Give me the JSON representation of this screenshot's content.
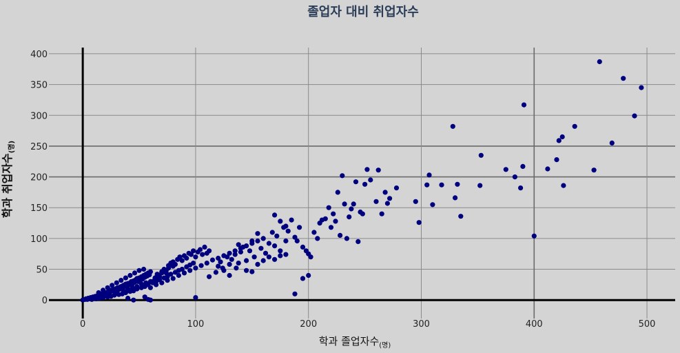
{
  "chart_data": {
    "type": "scatter",
    "title": "졸업자 대비 취업자수",
    "xlabel": "학과 졸업자수",
    "xlabel_unit": "(명)",
    "ylabel": "학과 취업자수",
    "ylabel_unit": "(명)",
    "xlim": [
      -30,
      525
    ],
    "ylim": [
      -30,
      410
    ],
    "x_ticks": [
      0,
      100,
      200,
      300,
      400,
      500
    ],
    "y_ticks": [
      0,
      50,
      100,
      150,
      200,
      250,
      300,
      350,
      400
    ],
    "x_tick_labels": [
      "0",
      "100",
      "200",
      "300",
      "400",
      "500"
    ],
    "y_tick_labels": [
      "0",
      "50",
      "100",
      "150",
      "200",
      "250",
      "300",
      "350",
      "400"
    ],
    "grid": true,
    "color": "#00007f",
    "points": [
      [
        0,
        0
      ],
      [
        2,
        1
      ],
      [
        3,
        2
      ],
      [
        4,
        1
      ],
      [
        5,
        3
      ],
      [
        6,
        2
      ],
      [
        7,
        4
      ],
      [
        8,
        3
      ],
      [
        9,
        5
      ],
      [
        10,
        4
      ],
      [
        11,
        6
      ],
      [
        12,
        5
      ],
      [
        13,
        7
      ],
      [
        14,
        8
      ],
      [
        15,
        6
      ],
      [
        16,
        9
      ],
      [
        17,
        10
      ],
      [
        18,
        8
      ],
      [
        19,
        11
      ],
      [
        20,
        12
      ],
      [
        21,
        9
      ],
      [
        22,
        13
      ],
      [
        23,
        14
      ],
      [
        24,
        12
      ],
      [
        25,
        16
      ],
      [
        26,
        15
      ],
      [
        27,
        17
      ],
      [
        28,
        14
      ],
      [
        29,
        18
      ],
      [
        30,
        19
      ],
      [
        31,
        20
      ],
      [
        32,
        17
      ],
      [
        33,
        21
      ],
      [
        34,
        22
      ],
      [
        35,
        19
      ],
      [
        36,
        24
      ],
      [
        37,
        23
      ],
      [
        38,
        26
      ],
      [
        39,
        21
      ],
      [
        40,
        27
      ],
      [
        41,
        25
      ],
      [
        42,
        28
      ],
      [
        43,
        30
      ],
      [
        44,
        26
      ],
      [
        45,
        31
      ],
      [
        46,
        29
      ],
      [
        47,
        33
      ],
      [
        48,
        35
      ],
      [
        49,
        30
      ],
      [
        50,
        36
      ],
      [
        51,
        32
      ],
      [
        52,
        38
      ],
      [
        53,
        34
      ],
      [
        54,
        40
      ],
      [
        55,
        37
      ],
      [
        56,
        42
      ],
      [
        57,
        39
      ],
      [
        58,
        44
      ],
      [
        59,
        41
      ],
      [
        60,
        46
      ],
      [
        8,
        1
      ],
      [
        12,
        2
      ],
      [
        15,
        3
      ],
      [
        18,
        4
      ],
      [
        22,
        5
      ],
      [
        25,
        6
      ],
      [
        28,
        8
      ],
      [
        32,
        9
      ],
      [
        35,
        10
      ],
      [
        38,
        12
      ],
      [
        42,
        14
      ],
      [
        45,
        15
      ],
      [
        48,
        18
      ],
      [
        52,
        20
      ],
      [
        55,
        22
      ],
      [
        58,
        25
      ],
      [
        62,
        28
      ],
      [
        65,
        30
      ],
      [
        68,
        33
      ],
      [
        72,
        36
      ],
      [
        75,
        38
      ],
      [
        78,
        42
      ],
      [
        82,
        45
      ],
      [
        85,
        48
      ],
      [
        88,
        50
      ],
      [
        92,
        54
      ],
      [
        95,
        57
      ],
      [
        98,
        60
      ],
      [
        14,
        12
      ],
      [
        18,
        16
      ],
      [
        22,
        20
      ],
      [
        26,
        24
      ],
      [
        30,
        28
      ],
      [
        34,
        32
      ],
      [
        38,
        36
      ],
      [
        42,
        40
      ],
      [
        46,
        44
      ],
      [
        50,
        48
      ],
      [
        54,
        50
      ],
      [
        30,
        12
      ],
      [
        36,
        15
      ],
      [
        40,
        18
      ],
      [
        44,
        20
      ],
      [
        48,
        22
      ],
      [
        52,
        26
      ],
      [
        56,
        28
      ],
      [
        60,
        30
      ],
      [
        64,
        34
      ],
      [
        66,
        40
      ],
      [
        70,
        44
      ],
      [
        74,
        48
      ],
      [
        76,
        52
      ],
      [
        80,
        55
      ],
      [
        62,
        30
      ],
      [
        64,
        36
      ],
      [
        66,
        42
      ],
      [
        68,
        38
      ],
      [
        70,
        46
      ],
      [
        72,
        50
      ],
      [
        74,
        44
      ],
      [
        76,
        56
      ],
      [
        78,
        60
      ],
      [
        80,
        62
      ],
      [
        82,
        58
      ],
      [
        84,
        66
      ],
      [
        86,
        70
      ],
      [
        88,
        64
      ],
      [
        90,
        72
      ],
      [
        92,
        68
      ],
      [
        94,
        76
      ],
      [
        96,
        74
      ],
      [
        98,
        80
      ],
      [
        100,
        70
      ],
      [
        102,
        78
      ],
      [
        104,
        82
      ],
      [
        106,
        74
      ],
      [
        108,
        86
      ],
      [
        110,
        76
      ],
      [
        112,
        80
      ],
      [
        60,
        20
      ],
      [
        65,
        25
      ],
      [
        70,
        28
      ],
      [
        75,
        32
      ],
      [
        80,
        35
      ],
      [
        85,
        40
      ],
      [
        90,
        44
      ],
      [
        95,
        48
      ],
      [
        100,
        52
      ],
      [
        105,
        56
      ],
      [
        110,
        60
      ],
      [
        115,
        65
      ],
      [
        120,
        68
      ],
      [
        125,
        72
      ],
      [
        130,
        76
      ],
      [
        135,
        80
      ],
      [
        140,
        84
      ],
      [
        145,
        88
      ],
      [
        150,
        92
      ],
      [
        155,
        96
      ],
      [
        100,
        4
      ],
      [
        55,
        5
      ],
      [
        58,
        1
      ],
      [
        45,
        0
      ],
      [
        60,
        0
      ],
      [
        40,
        3
      ],
      [
        120,
        55
      ],
      [
        122,
        62
      ],
      [
        125,
        48
      ],
      [
        128,
        70
      ],
      [
        130,
        58
      ],
      [
        132,
        66
      ],
      [
        135,
        74
      ],
      [
        136,
        52
      ],
      [
        138,
        90
      ],
      [
        140,
        78
      ],
      [
        142,
        86
      ],
      [
        145,
        64
      ],
      [
        148,
        80
      ],
      [
        150,
        96
      ],
      [
        152,
        70
      ],
      [
        155,
        108
      ],
      [
        158,
        84
      ],
      [
        160,
        100
      ],
      [
        162,
        76
      ],
      [
        165,
        92
      ],
      [
        168,
        110
      ],
      [
        170,
        88
      ],
      [
        172,
        104
      ],
      [
        175,
        80
      ],
      [
        178,
        118
      ],
      [
        180,
        96
      ],
      [
        112,
        38
      ],
      [
        118,
        45
      ],
      [
        124,
        52
      ],
      [
        130,
        40
      ],
      [
        138,
        60
      ],
      [
        145,
        48
      ],
      [
        150,
        46
      ],
      [
        155,
        58
      ],
      [
        160,
        64
      ],
      [
        165,
        70
      ],
      [
        170,
        66
      ],
      [
        175,
        72
      ],
      [
        180,
        74
      ],
      [
        170,
        138
      ],
      [
        175,
        128
      ],
      [
        180,
        120
      ],
      [
        182,
        112
      ],
      [
        185,
        130
      ],
      [
        188,
        102
      ],
      [
        190,
        96
      ],
      [
        192,
        118
      ],
      [
        195,
        86
      ],
      [
        198,
        80
      ],
      [
        200,
        75
      ],
      [
        202,
        70
      ],
      [
        205,
        110
      ],
      [
        208,
        100
      ],
      [
        188,
        10
      ],
      [
        195,
        35
      ],
      [
        200,
        40
      ],
      [
        210,
        125
      ],
      [
        212,
        130
      ],
      [
        215,
        132
      ],
      [
        218,
        150
      ],
      [
        220,
        118
      ],
      [
        222,
        140
      ],
      [
        224,
        128
      ],
      [
        226,
        175
      ],
      [
        228,
        105
      ],
      [
        230,
        202
      ],
      [
        232,
        156
      ],
      [
        234,
        100
      ],
      [
        236,
        135
      ],
      [
        238,
        148
      ],
      [
        240,
        156
      ],
      [
        242,
        192
      ],
      [
        244,
        95
      ],
      [
        246,
        143
      ],
      [
        248,
        140
      ],
      [
        250,
        188
      ],
      [
        252,
        212
      ],
      [
        255,
        195
      ],
      [
        260,
        160
      ],
      [
        262,
        211
      ],
      [
        265,
        140
      ],
      [
        268,
        175
      ],
      [
        270,
        157
      ],
      [
        272,
        165
      ],
      [
        278,
        182
      ],
      [
        295,
        160
      ],
      [
        298,
        126
      ],
      [
        305,
        187
      ],
      [
        307,
        203
      ],
      [
        310,
        155
      ],
      [
        318,
        187
      ],
      [
        328,
        282
      ],
      [
        330,
        166
      ],
      [
        332,
        188
      ],
      [
        335,
        136
      ],
      [
        352,
        186
      ],
      [
        353,
        235
      ],
      [
        375,
        212
      ],
      [
        383,
        200
      ],
      [
        388,
        182
      ],
      [
        390,
        217
      ],
      [
        391,
        317
      ],
      [
        400,
        104
      ],
      [
        412,
        213
      ],
      [
        420,
        228
      ],
      [
        422,
        259
      ],
      [
        425,
        265
      ],
      [
        426,
        186
      ],
      [
        436,
        282
      ],
      [
        453,
        211
      ],
      [
        458,
        387
      ],
      [
        469,
        255
      ],
      [
        479,
        360
      ],
      [
        489,
        299
      ],
      [
        495,
        345
      ]
    ]
  }
}
